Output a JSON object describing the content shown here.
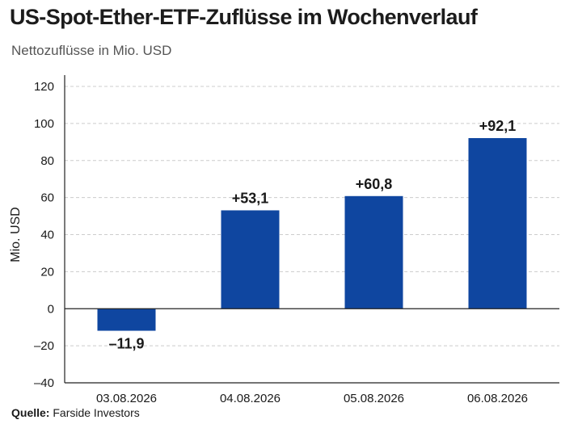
{
  "title": "US-Spot-Ether-ETF-Zuflüsse im Wochenverlauf",
  "subtitle": "Nettozuflüsse in Mio. USD",
  "source": {
    "label": "Quelle:",
    "text": "Farside Investors"
  },
  "colors": {
    "bar": "#0f46a0",
    "grid": "#cccccc",
    "axis": "#222222"
  },
  "chart_data": {
    "type": "bar",
    "title": "US-Spot-Ether-ETF-Zuflüsse im Wochenverlauf",
    "subtitle": "Nettozuflüsse in Mio. USD",
    "xlabel": "",
    "ylabel": "Mio. USD",
    "categories": [
      "03.08.2026",
      "04.08.2026",
      "05.08.2026",
      "06.08.2026"
    ],
    "values": [
      -11.9,
      53.1,
      60.8,
      92.1
    ],
    "data_labels": [
      "–11,9",
      "+53,1",
      "+60,8",
      "+92,1"
    ],
    "ylim": [
      -40,
      120
    ],
    "yticks": [
      -40,
      -20,
      0,
      20,
      40,
      60,
      80,
      100,
      120
    ],
    "ytick_labels": [
      "–40",
      "–20",
      "0",
      "20",
      "40",
      "60",
      "80",
      "100",
      "120"
    ],
    "grid": true,
    "legend": "none"
  }
}
